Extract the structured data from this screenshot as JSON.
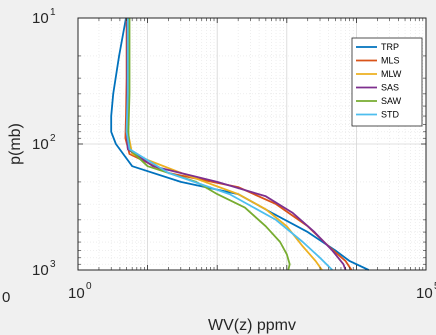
{
  "chart_data": {
    "type": "line",
    "xlabel": "WV(z) ppmv",
    "ylabel": "p(mb)",
    "xscale": "log",
    "yscale": "log",
    "yreversed": true,
    "xlim": [
      1,
      100000
    ],
    "ylim": [
      10,
      1000
    ],
    "grid": true,
    "legend_position": "top-right",
    "x_ticks": [
      {
        "base": "10",
        "exp": "0",
        "value": 1
      },
      {
        "base": "10",
        "exp": "5",
        "value": 100000
      }
    ],
    "y_ticks": [
      {
        "base": "10",
        "exp": "1",
        "value": 10
      },
      {
        "base": "10",
        "exp": "2",
        "value": 100
      },
      {
        "base": "10",
        "exp": "3",
        "value": 1000
      }
    ],
    "left_edge_label": "0",
    "series": [
      {
        "name": "TRP",
        "color": "#0072BD",
        "points": [
          [
            4.9,
            10
          ],
          [
            3.9,
            20
          ],
          [
            3.2,
            40
          ],
          [
            3.0,
            60
          ],
          [
            3.0,
            80
          ],
          [
            3.5,
            100
          ],
          [
            6,
            150
          ],
          [
            30,
            200
          ],
          [
            200,
            250
          ],
          [
            600,
            350
          ],
          [
            2000,
            500
          ],
          [
            5000,
            700
          ],
          [
            8000,
            850
          ],
          [
            15000,
            1000
          ]
        ]
      },
      {
        "name": "MLS",
        "color": "#D95319",
        "points": [
          [
            5.0,
            10
          ],
          [
            5.0,
            30
          ],
          [
            4.9,
            60
          ],
          [
            4.8,
            90
          ],
          [
            5.5,
            120
          ],
          [
            20,
            170
          ],
          [
            200,
            220
          ],
          [
            700,
            300
          ],
          [
            2000,
            450
          ],
          [
            4000,
            650
          ],
          [
            7000,
            850
          ],
          [
            8500,
            1000
          ]
        ]
      },
      {
        "name": "MLW",
        "color": "#EDB120",
        "points": [
          [
            5.3,
            10
          ],
          [
            5.3,
            40
          ],
          [
            5.2,
            80
          ],
          [
            6,
            120
          ],
          [
            40,
            180
          ],
          [
            200,
            250
          ],
          [
            500,
            330
          ],
          [
            1000,
            450
          ],
          [
            1700,
            650
          ],
          [
            2600,
            850
          ],
          [
            3200,
            1000
          ]
        ]
      },
      {
        "name": "SAS",
        "color": "#7E2F8E",
        "points": [
          [
            5.1,
            10
          ],
          [
            5.1,
            40
          ],
          [
            5.0,
            80
          ],
          [
            5.2,
            110
          ],
          [
            12,
            150
          ],
          [
            100,
            200
          ],
          [
            500,
            260
          ],
          [
            1200,
            350
          ],
          [
            2500,
            500
          ],
          [
            4500,
            700
          ],
          [
            6500,
            900
          ],
          [
            7000,
            1000
          ]
        ]
      },
      {
        "name": "SAW",
        "color": "#77AC30",
        "points": [
          [
            5.5,
            10
          ],
          [
            5.5,
            40
          ],
          [
            5.3,
            80
          ],
          [
            5.5,
            110
          ],
          [
            10,
            150
          ],
          [
            50,
            200
          ],
          [
            100,
            250
          ],
          [
            250,
            320
          ],
          [
            500,
            450
          ],
          [
            800,
            600
          ],
          [
            1000,
            750
          ],
          [
            1100,
            900
          ],
          [
            1050,
            1000
          ]
        ]
      },
      {
        "name": "STD",
        "color": "#4DBEEE",
        "points": [
          [
            5.2,
            10
          ],
          [
            5.2,
            40
          ],
          [
            5.0,
            80
          ],
          [
            5.5,
            110
          ],
          [
            20,
            170
          ],
          [
            150,
            250
          ],
          [
            700,
            400
          ],
          [
            1700,
            600
          ],
          [
            3000,
            800
          ],
          [
            4500,
            1000
          ]
        ]
      }
    ]
  }
}
